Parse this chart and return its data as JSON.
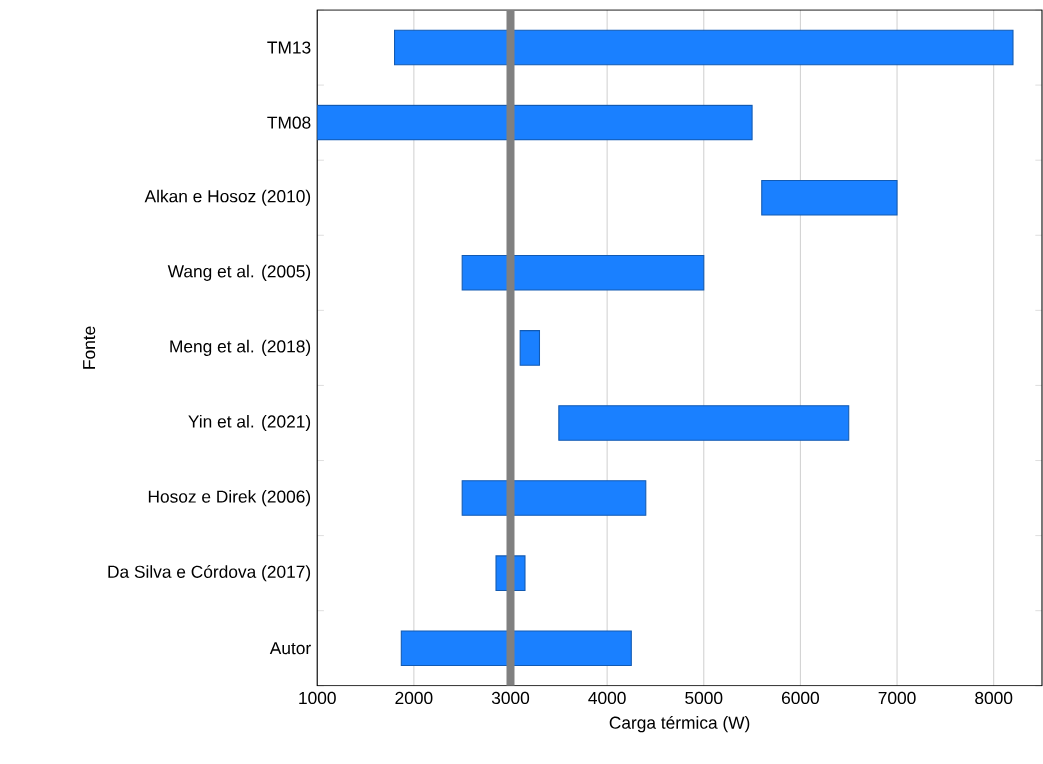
{
  "chart_data": {
    "type": "bar",
    "orientation": "horizontal",
    "xlabel": "Carga térmica (W)",
    "ylabel": "Fonte",
    "categories": [
      "TM13",
      "TM08",
      "Alkan e Hosoz (2010)",
      "Wang et al. (2005)",
      "Meng et al. (2018)",
      "Yin et al. (2021)",
      "Hosoz e Direk (2006)",
      "Da Silva e Córdova (2017)",
      "Autor"
    ],
    "base": [
      1800,
      1000,
      5600,
      2500,
      3100,
      3500,
      2500,
      2850,
      1870
    ],
    "values": [
      6400,
      4500,
      1400,
      2500,
      200,
      3000,
      1900,
      300,
      2380
    ],
    "color": "#1a80ff",
    "xlim": [
      1000,
      8500
    ],
    "xticks": [
      1000,
      2000,
      3000,
      4000,
      5000,
      6000,
      7000,
      8000
    ],
    "grid": "x",
    "ref_lines": [
      {
        "axis": "x",
        "value": 3000,
        "color": "#808080"
      }
    ]
  }
}
